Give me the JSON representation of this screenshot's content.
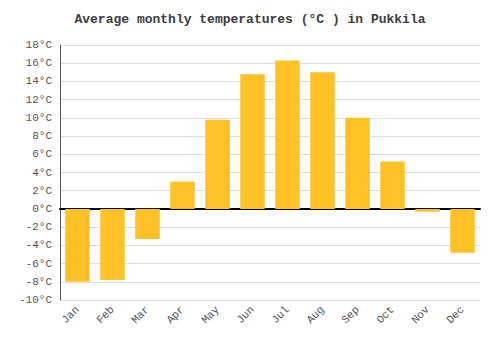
{
  "chart_data": {
    "type": "bar",
    "title": "Average monthly temperatures (°C ) in Pukkila",
    "categories": [
      "Jan",
      "Feb",
      "Mar",
      "Apr",
      "May",
      "Jun",
      "Jul",
      "Aug",
      "Sep",
      "Oct",
      "Nov",
      "Dec"
    ],
    "values": [
      -8.0,
      -7.8,
      -3.3,
      3.0,
      9.8,
      14.8,
      16.3,
      15.0,
      10.0,
      5.2,
      -0.3,
      -4.8
    ],
    "color": "#FFC125",
    "ylim": [
      -10,
      18
    ],
    "yticks": [
      {
        "value": -10,
        "label": "-10°C"
      },
      {
        "value": -8,
        "label": "-8°C"
      },
      {
        "value": -6,
        "label": "-6°C"
      },
      {
        "value": -4,
        "label": "-4°C"
      },
      {
        "value": -2,
        "label": "-2°C"
      },
      {
        "value": 0,
        "label": "0°C"
      },
      {
        "value": 2,
        "label": "2°C"
      },
      {
        "value": 4,
        "label": "4°C"
      },
      {
        "value": 6,
        "label": "6°C"
      },
      {
        "value": 8,
        "label": "8°C"
      },
      {
        "value": 10,
        "label": "10°C"
      },
      {
        "value": 12,
        "label": "12°C"
      },
      {
        "value": 14,
        "label": "14°C"
      },
      {
        "value": 16,
        "label": "16°C"
      },
      {
        "value": 18,
        "label": "18°C"
      }
    ],
    "grid": true
  }
}
